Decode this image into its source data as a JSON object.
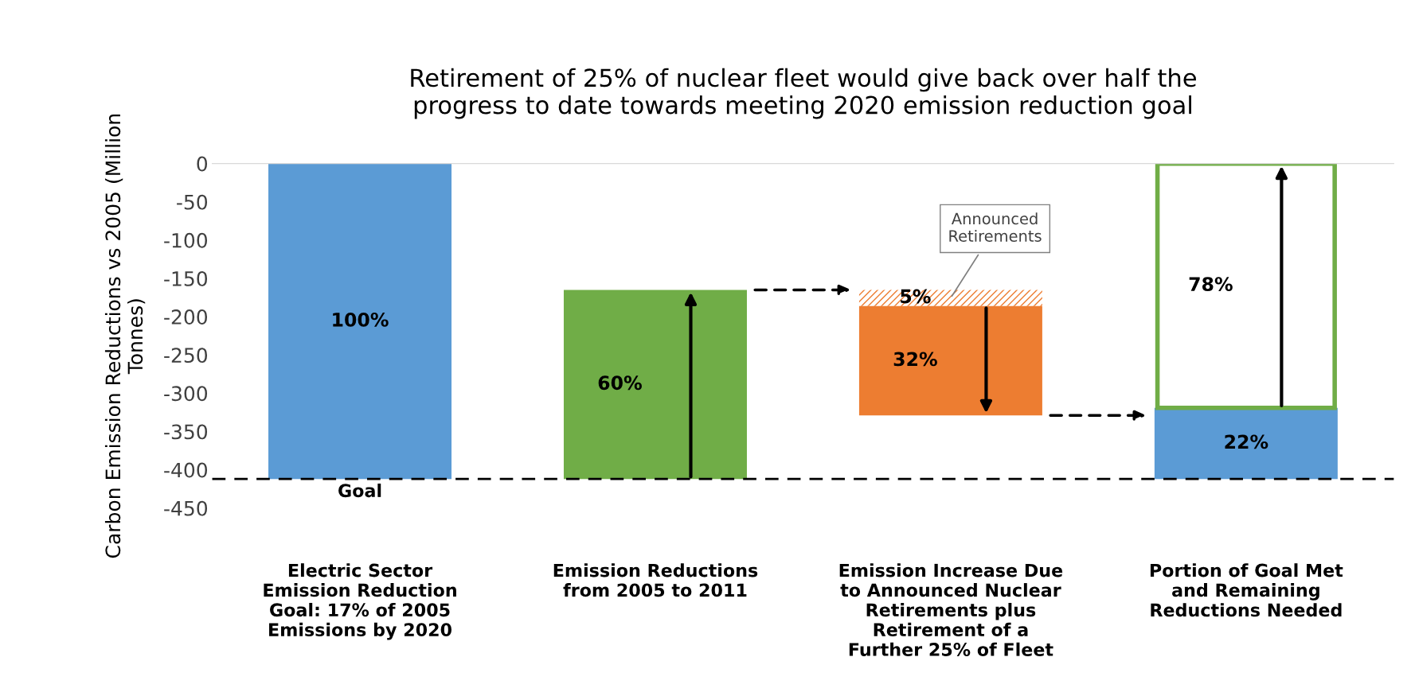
{
  "chart_data": {
    "type": "bar",
    "title": "Retirement of 25% of nuclear fleet would give back over half the\nprogress to date towards meeting 2020 emission reduction goal",
    "ylabel": "Carbon Emission Reductions vs 2005 (Million\nTonnes)",
    "categories": [
      "Electric Sector\nEmission Reduction\nGoal: 17% of 2005\nEmissions by 2020",
      "Emission Reductions\nfrom 2005 to 2011",
      "Emission Increase Due\nto Announced Nuclear\nRetirements plus\nRetirement of a\nFurther 25% of Fleet",
      "Portion of Goal Met\nand Remaining\nReductions Needed"
    ],
    "series": [
      {
        "color": "#5b9bd5",
        "values": [
          -412,
          null,
          null,
          93
        ],
        "base": [
          0,
          null,
          null,
          -412
        ]
      },
      {
        "color": "#70ad47",
        "values": [
          null,
          247,
          null,
          null
        ],
        "base": [
          null,
          -412,
          null,
          null
        ]
      },
      {
        "color": "#ed7d31",
        "values": [
          null,
          null,
          -21,
          null
        ],
        "base": [
          null,
          null,
          -165,
          null
        ]
      },
      {
        "color": "#ed7d31",
        "values": [
          null,
          null,
          -143,
          null
        ],
        "base": [
          null,
          null,
          -186,
          null
        ]
      },
      {
        "color": "#70ad47",
        "values": [
          null,
          null,
          null,
          319
        ],
        "base": [
          null,
          null,
          null,
          -319
        ]
      }
    ],
    "ylim": [
      -450,
      0
    ],
    "yticks": [
      -450,
      -400,
      -350,
      -300,
      -250,
      -200,
      -150,
      -100,
      -50,
      0
    ],
    "ref_lines": [
      {
        "axis": "y",
        "value": -412,
        "label": "Goal",
        "color": "#000000",
        "line_style": "dashed"
      }
    ],
    "annotations": [
      "100%",
      "22%",
      "60%",
      "5%",
      "32%",
      "78%",
      "Announced\nRetirements"
    ],
    "grid": false,
    "legend": false
  }
}
